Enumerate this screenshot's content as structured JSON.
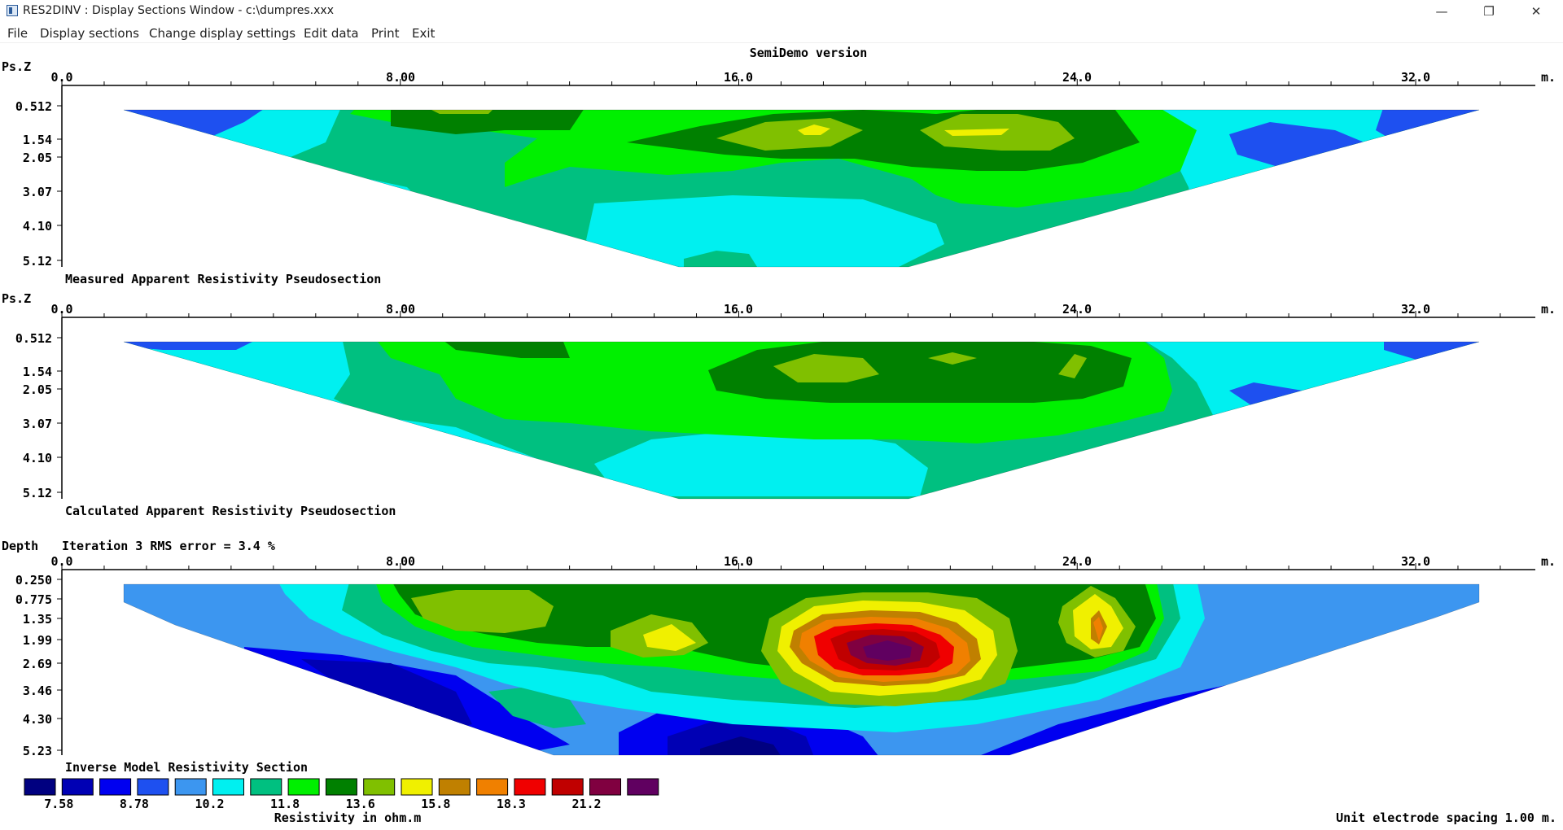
{
  "window": {
    "title": "RES2DINV : Display Sections Window - c:\\dumpres.xxx",
    "min_glyph": "—",
    "max_glyph": "❐",
    "close_glyph": "✕"
  },
  "menu": [
    "File",
    "Display sections",
    "Change display settings",
    "Edit data",
    "Print",
    "Exit"
  ],
  "header": "SemiDemo version",
  "x_ticks": [
    "0.0",
    "8.00",
    "16.0",
    "24.0",
    "32.0"
  ],
  "x_unit": "m.",
  "sections": [
    {
      "title": "Measured Apparent Resistivity Pseudosection",
      "depth_label": "Ps.Z",
      "depth_ticks": [
        "0.512",
        "1.54",
        "2.05",
        "3.07",
        "4.10",
        "5.12"
      ]
    },
    {
      "title": "Calculated Apparent Resistivity Pseudosection",
      "depth_label": "Ps.Z",
      "depth_ticks": [
        "0.512",
        "1.54",
        "2.05",
        "3.07",
        "4.10",
        "5.12"
      ]
    },
    {
      "title": "Inverse Model Resistivity Section",
      "depth_label": "Depth",
      "iteration_note": "Iteration 3 RMS error = 3.4 %",
      "depth_ticks": [
        "0.250",
        "0.775",
        "1.35",
        "1.99",
        "2.69",
        "3.46",
        "4.30",
        "5.23"
      ]
    }
  ],
  "legend": {
    "colors": [
      "#000080",
      "#0000b4",
      "#0000f0",
      "#1e50f0",
      "#3c96f0",
      "#00f0f0",
      "#00c080",
      "#00f000",
      "#008000",
      "#80c000",
      "#f0f000",
      "#c08000",
      "#f08000",
      "#f00000",
      "#c00000",
      "#800040",
      "#600060"
    ],
    "values": [
      "7.58",
      "8.78",
      "10.2",
      "11.8",
      "13.6",
      "15.8",
      "18.3",
      "21.2"
    ],
    "caption": "Resistivity in ohm.m"
  },
  "footer": "Unit electrode spacing 1.00 m."
}
